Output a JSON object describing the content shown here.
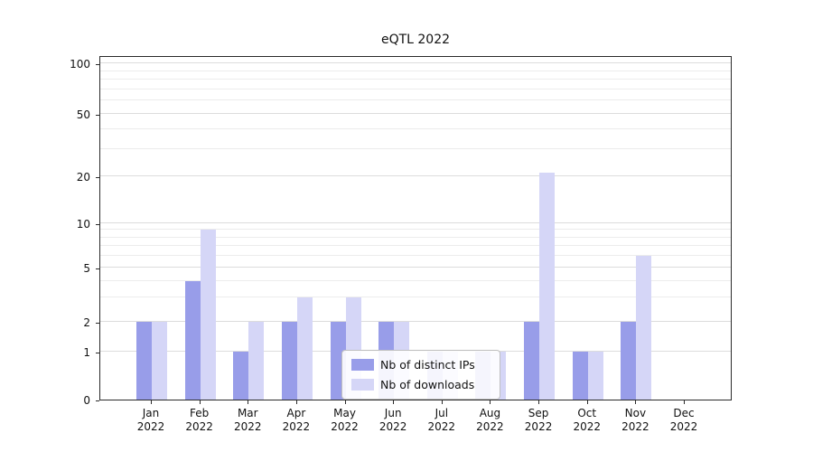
{
  "title": "eQTL 2022",
  "chart_data": {
    "type": "bar",
    "title": "eQTL 2022",
    "categories": [
      "Jan 2022",
      "Feb 2022",
      "Mar 2022",
      "Apr 2022",
      "May 2022",
      "Jun 2022",
      "Jul 2022",
      "Aug 2022",
      "Sep 2022",
      "Oct 2022",
      "Nov 2022",
      "Dec 2022"
    ],
    "series": [
      {
        "name": "Nb of distinct IPs",
        "color": "#989de9",
        "values": [
          2,
          4,
          1,
          2,
          2,
          2,
          1,
          1,
          2,
          1,
          2,
          0
        ]
      },
      {
        "name": "Nb of downloads",
        "color": "#d5d6f7",
        "values": [
          2,
          9,
          2,
          3,
          3,
          2,
          1,
          1,
          21,
          1,
          6,
          0
        ]
      }
    ],
    "xlabel": "",
    "ylabel": "",
    "yscale": "log-like (symlog with 0 baseline)",
    "yticks": [
      0,
      1,
      2,
      5,
      10,
      20,
      50,
      100
    ],
    "minor_gridlines": [
      3,
      4,
      6,
      7,
      8,
      9,
      30,
      40,
      60,
      70,
      80,
      90
    ],
    "ylim": [
      0,
      120
    ],
    "grid": true,
    "legend_position": "lower center"
  },
  "colors": {
    "series_ips": "#989de9",
    "series_downloads": "#d5d6f7",
    "grid_major": "#dcdcdc",
    "grid_minor": "#ececec",
    "axis": "#2a2a2a"
  }
}
